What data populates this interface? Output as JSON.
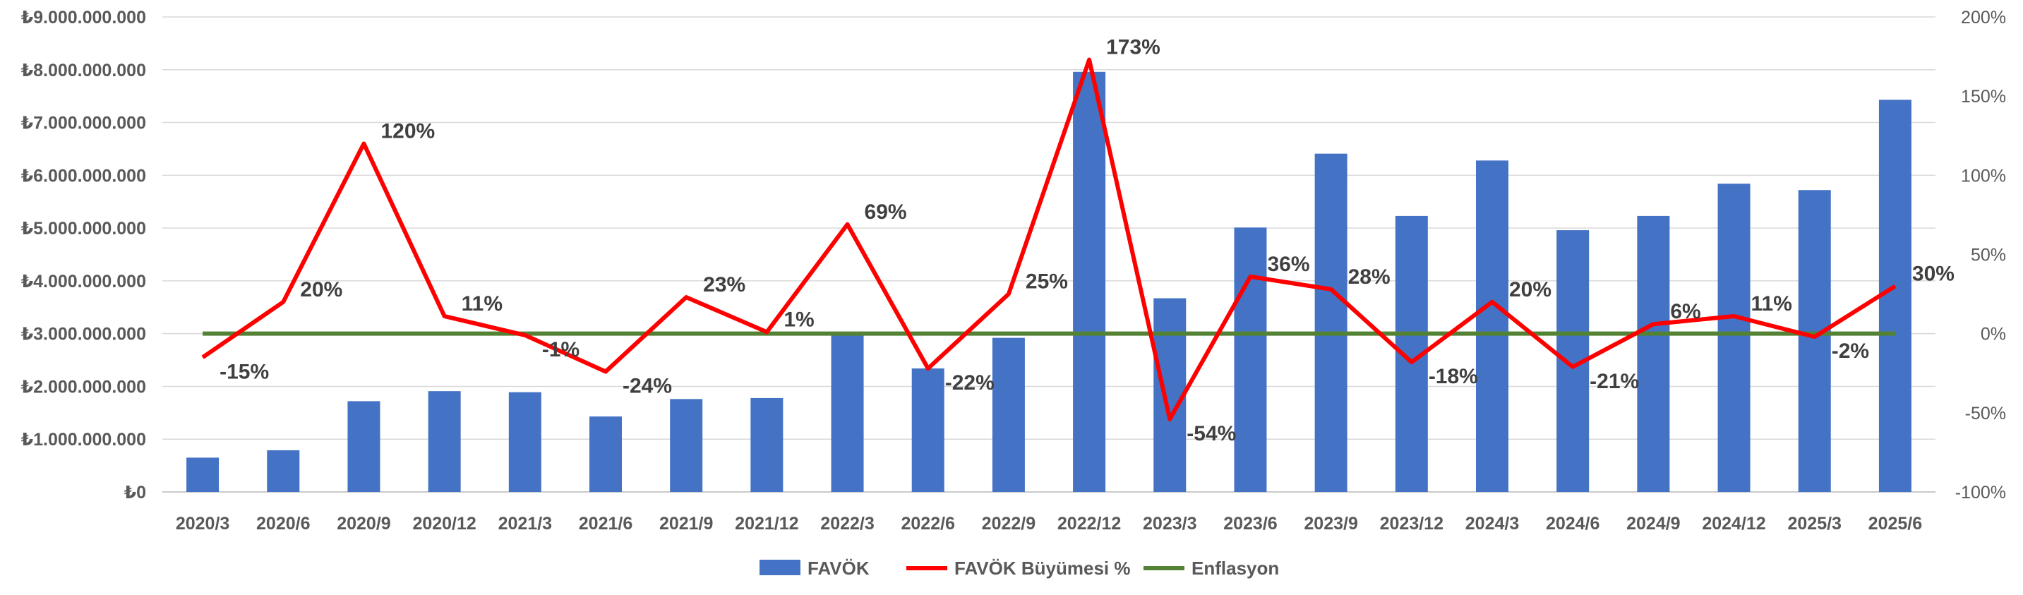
{
  "chart_data": {
    "type": "bar",
    "categories": [
      "2020/3",
      "2020/6",
      "2020/9",
      "2020/12",
      "2021/3",
      "2021/6",
      "2021/9",
      "2021/12",
      "2022/3",
      "2022/6",
      "2022/9",
      "2022/12",
      "2023/3",
      "2023/6",
      "2023/9",
      "2023/12",
      "2024/3",
      "2024/6",
      "2024/9",
      "2024/12",
      "2025/3",
      "2025/6"
    ],
    "series": [
      {
        "name": "FAVÖK",
        "type": "bar",
        "axis": "left",
        "color": "#4472C4",
        "values": [
          650000000,
          790000000,
          1720000000,
          1910000000,
          1890000000,
          1430000000,
          1760000000,
          1780000000,
          3000000000,
          2340000000,
          2920000000,
          7960000000,
          3670000000,
          5010000000,
          6410000000,
          5230000000,
          6280000000,
          4960000000,
          5230000000,
          5840000000,
          5720000000,
          7430000000
        ]
      },
      {
        "name": "FAVÖK Büyümesi %",
        "type": "line",
        "axis": "right",
        "color": "#FF0000",
        "values": [
          -15,
          20,
          120,
          11,
          -1,
          -24,
          23,
          1,
          69,
          -22,
          25,
          173,
          -54,
          36,
          28,
          -18,
          20,
          -21,
          6,
          11,
          -2,
          30
        ],
        "labels": [
          "-15%",
          "20%",
          "120%",
          "11%",
          "-1%",
          "-24%",
          "23%",
          "1%",
          "69%",
          "-22%",
          "25%",
          "173%",
          "-54%",
          "36%",
          "28%",
          "-18%",
          "20%",
          "-21%",
          "6%",
          "11%",
          "-2%",
          "30%"
        ]
      },
      {
        "name": "Enflasyon",
        "type": "line",
        "axis": "right",
        "color": "#548235",
        "values": [
          0,
          0,
          0,
          0,
          0,
          0,
          0,
          0,
          0,
          0,
          0,
          0,
          0,
          0,
          0,
          0,
          0,
          0,
          0,
          0,
          0,
          0
        ]
      }
    ],
    "y_left": {
      "ylim": [
        0,
        9000000000
      ],
      "ticks": [
        "₺0",
        "₺1.000.000.000",
        "₺2.000.000.000",
        "₺3.000.000.000",
        "₺4.000.000.000",
        "₺5.000.000.000",
        "₺6.000.000.000",
        "₺7.000.000.000",
        "₺8.000.000.000",
        "₺9.000.000.000"
      ]
    },
    "y_right": {
      "ylim": [
        -100,
        200
      ],
      "ticks": [
        "-100%",
        "-50%",
        "0%",
        "50%",
        "100%",
        "150%",
        "200%"
      ]
    },
    "grid": true,
    "legend": "bottom-center"
  }
}
